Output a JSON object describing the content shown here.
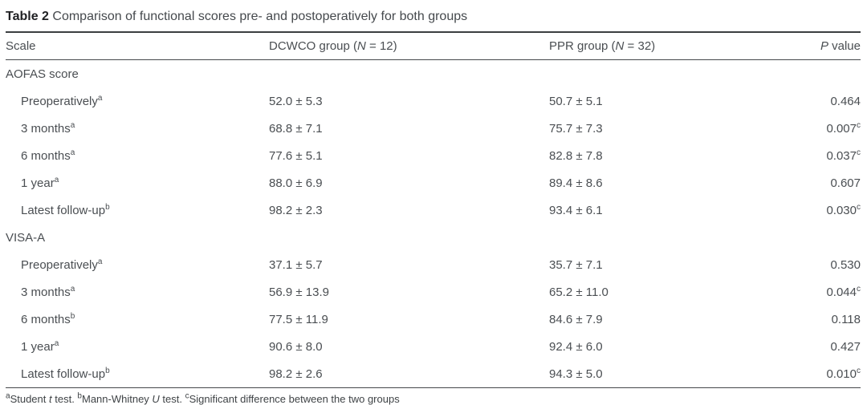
{
  "title": {
    "label": "Table 2",
    "text": " Comparison of functional scores pre- and postoperatively for both groups"
  },
  "columns": {
    "scale": "Scale",
    "dcwco": {
      "pre": "DCWCO group (",
      "italic": "N",
      "post": " = 12)"
    },
    "ppr": {
      "pre": "PPR group (",
      "italic": "N",
      "post": " = 32)"
    },
    "pvalue": {
      "italic": "P",
      "post": " value"
    }
  },
  "rows": [
    {
      "section": true,
      "label": "AOFAS score"
    },
    {
      "section": false,
      "label": "Preoperatively",
      "sup": "a",
      "dcwco": "52.0 ± 5.3",
      "ppr": "50.7 ± 5.1",
      "p": "0.464",
      "p_sup": ""
    },
    {
      "section": false,
      "label": "3 months",
      "sup": "a",
      "dcwco": "68.8 ± 7.1",
      "ppr": "75.7 ± 7.3",
      "p": "0.007",
      "p_sup": "c"
    },
    {
      "section": false,
      "label": "6 months",
      "sup": "a",
      "dcwco": "77.6 ± 5.1",
      "ppr": "82.8 ± 7.8",
      "p": "0.037",
      "p_sup": "c"
    },
    {
      "section": false,
      "label": "1 year",
      "sup": "a",
      "dcwco": "88.0 ± 6.9",
      "ppr": "89.4 ± 8.6",
      "p": "0.607",
      "p_sup": ""
    },
    {
      "section": false,
      "label": "Latest follow-up",
      "sup": "b",
      "dcwco": "98.2 ± 2.3",
      "ppr": "93.4 ± 6.1",
      "p": "0.030",
      "p_sup": "c"
    },
    {
      "section": true,
      "label": "VISA-A"
    },
    {
      "section": false,
      "label": "Preoperatively",
      "sup": "a",
      "dcwco": "37.1 ± 5.7",
      "ppr": "35.7 ± 7.1",
      "p": "0.530",
      "p_sup": ""
    },
    {
      "section": false,
      "label": "3 months",
      "sup": "a",
      "dcwco": "56.9 ± 13.9",
      "ppr": "65.2 ± 11.0",
      "p": "0.044",
      "p_sup": "c"
    },
    {
      "section": false,
      "label": "6 months",
      "sup": "b",
      "dcwco": "77.5 ± 11.9",
      "ppr": "84.6 ± 7.9",
      "p": "0.118",
      "p_sup": ""
    },
    {
      "section": false,
      "label": "1 year",
      "sup": "a",
      "dcwco": "90.6 ± 8.0",
      "ppr": "92.4 ± 6.0",
      "p": "0.427",
      "p_sup": ""
    },
    {
      "section": false,
      "label": "Latest follow-up",
      "sup": "b",
      "dcwco": "98.2 ± 2.6",
      "ppr": "94.3 ± 5.0",
      "p": "0.010",
      "p_sup": "c"
    }
  ],
  "footnote": {
    "sup_a": "a",
    "seg1": "Student ",
    "it1": "t",
    "seg2": " test. ",
    "sup_b": "b",
    "seg3": "Mann-Whitney ",
    "it2": "U",
    "seg4": " test. ",
    "sup_c": "c",
    "seg5": "Significant difference between the two groups"
  }
}
